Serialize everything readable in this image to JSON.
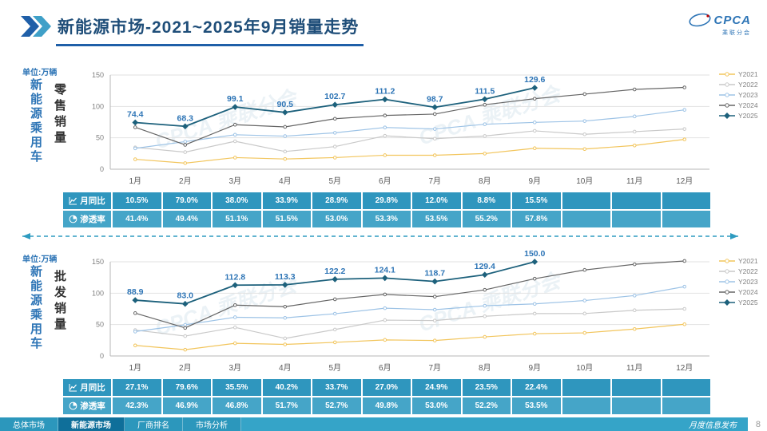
{
  "watermark": "CPCA 乘联分会",
  "header": {
    "title": "新能源市场-2021~2025年9月销量走势",
    "logo": {
      "brand": "CPCA",
      "brand_cn": "乘联分会"
    }
  },
  "footer": {
    "tabs": [
      {
        "label": "总体市场",
        "active": false
      },
      {
        "label": "新能源市场",
        "active": true
      },
      {
        "label": "厂商排名",
        "active": false
      },
      {
        "label": "市场分析",
        "active": false
      }
    ],
    "right_text": "月度信息发布",
    "page_number": "8"
  },
  "chart_data": [
    {
      "type": "line",
      "title": "零售销量",
      "group_label": "新能源乘用车",
      "unit_label": "单位:万辆",
      "categories": [
        "1月",
        "2月",
        "3月",
        "4月",
        "5月",
        "6月",
        "7月",
        "8月",
        "9月",
        "10月",
        "11月",
        "12月"
      ],
      "ylim": [
        0,
        150
      ],
      "yticks": [
        0,
        50,
        100,
        150
      ],
      "legend_position": "right",
      "series": [
        {
          "name": "Y2021",
          "color": "#F2C55C",
          "values": [
            15.8,
            9.7,
            18.5,
            16.3,
            18.5,
            22.3,
            22.2,
            24.9,
            33.4,
            32.1,
            37.8,
            47.5
          ]
        },
        {
          "name": "Y2022",
          "color": "#C9C9C9",
          "values": [
            34.7,
            27.2,
            44.5,
            28.2,
            36.0,
            53.2,
            48.6,
            52.9,
            61.1,
            55.6,
            59.8,
            64.0
          ]
        },
        {
          "name": "Y2023",
          "color": "#9DC3E6",
          "values": [
            33.2,
            43.9,
            54.9,
            52.7,
            58.0,
            66.5,
            64.1,
            71.6,
            74.6,
            76.7,
            84.1,
            94.5
          ]
        },
        {
          "name": "Y2024",
          "color": "#666666",
          "values": [
            66.8,
            38.8,
            70.9,
            67.4,
            80.4,
            85.6,
            87.8,
            102.7,
            112.3,
            119.6,
            127.1,
            130.3
          ]
        },
        {
          "name": "Y2025",
          "color": "#1D617C",
          "labeled": true,
          "values": [
            74.4,
            68.3,
            99.1,
            90.5,
            102.7,
            111.2,
            98.7,
            111.5,
            129.6
          ]
        }
      ],
      "table": [
        {
          "label": "月同比",
          "icon": "line-chart-icon",
          "values": [
            "10.5%",
            "79.0%",
            "38.0%",
            "33.9%",
            "28.9%",
            "29.8%",
            "12.0%",
            "8.8%",
            "15.5%",
            "",
            "",
            ""
          ]
        },
        {
          "label": "渗透率",
          "icon": "pie-chart-icon",
          "values": [
            "41.4%",
            "49.4%",
            "51.1%",
            "51.5%",
            "53.0%",
            "53.3%",
            "53.5%",
            "55.2%",
            "57.8%",
            "",
            "",
            ""
          ]
        }
      ]
    },
    {
      "type": "line",
      "title": "批发销量",
      "group_label": "新能源乘用车",
      "unit_label": "单位:万辆",
      "categories": [
        "1月",
        "2月",
        "3月",
        "4月",
        "5月",
        "6月",
        "7月",
        "8月",
        "9月",
        "10月",
        "11月",
        "12月"
      ],
      "ylim": [
        0,
        150
      ],
      "yticks": [
        0,
        50,
        100,
        150
      ],
      "legend_position": "right",
      "series": [
        {
          "name": "Y2021",
          "color": "#F2C55C",
          "values": [
            16.8,
            10.0,
            20.2,
            18.4,
            21.7,
            25.6,
            24.6,
            30.4,
            35.5,
            36.8,
            42.9,
            50.5
          ]
        },
        {
          "name": "Y2022",
          "color": "#C9C9C9",
          "values": [
            41.2,
            31.7,
            45.5,
            28.0,
            42.1,
            57.1,
            56.4,
            63.2,
            67.5,
            67.6,
            72.8,
            75.0
          ]
        },
        {
          "name": "Y2023",
          "color": "#9DC3E6",
          "values": [
            38.9,
            49.6,
            61.7,
            60.7,
            67.3,
            76.1,
            73.7,
            80.0,
            82.9,
            88.3,
            96.2,
            110.4
          ]
        },
        {
          "name": "Y2024",
          "color": "#666666",
          "values": [
            68.2,
            44.7,
            81.0,
            78.5,
            90.3,
            98.0,
            94.5,
            105.3,
            123.1,
            137.0,
            146.0,
            151.3
          ]
        },
        {
          "name": "Y2025",
          "color": "#1D617C",
          "labeled": true,
          "values": [
            88.9,
            83.0,
            112.8,
            113.3,
            122.2,
            124.1,
            118.7,
            129.4,
            150.0
          ]
        }
      ],
      "table": [
        {
          "label": "月同比",
          "icon": "line-chart-icon",
          "values": [
            "27.1%",
            "79.6%",
            "35.5%",
            "40.2%",
            "33.7%",
            "27.0%",
            "24.9%",
            "23.5%",
            "22.4%",
            "",
            "",
            ""
          ]
        },
        {
          "label": "渗透率",
          "icon": "pie-chart-icon",
          "values": [
            "42.3%",
            "46.9%",
            "46.8%",
            "51.7%",
            "52.7%",
            "49.8%",
            "53.0%",
            "52.2%",
            "53.5%",
            "",
            "",
            ""
          ]
        }
      ]
    }
  ]
}
